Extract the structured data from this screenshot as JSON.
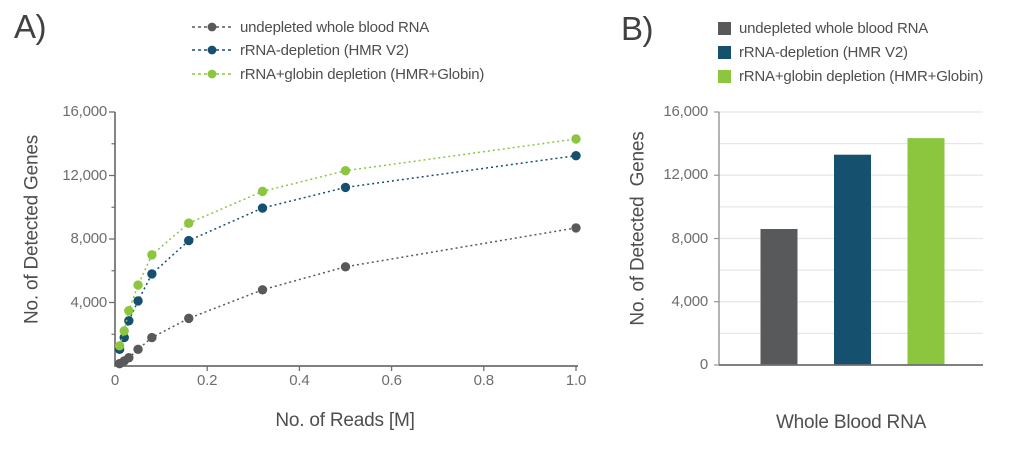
{
  "theme": {
    "background": "#ffffff",
    "axis_color": "#6d6e71",
    "secondary_axis_color": "#939598",
    "grid_color": "#e6e7e8",
    "tick_label_color": "#6d6e71",
    "axis_title_color": "#4d4e50",
    "panel_label_color": "#414042"
  },
  "chart_data": [
    {
      "type": "line",
      "panel": "A)",
      "title": "",
      "xlabel": "No. of Reads [M]",
      "ylabel": "No. of Detected Genes",
      "xlim": [
        0,
        1.0
      ],
      "ylim": [
        0,
        16000
      ],
      "xtick_labels": [
        "0",
        "0.2",
        "0.4",
        "0.6",
        "0.8",
        "1.0"
      ],
      "ytick_values": [
        16000,
        12000,
        8000,
        4000
      ],
      "ytick_labels": [
        "16,000",
        "12,000",
        "8,000",
        "4,000"
      ],
      "ytick_minor_values": [
        14000,
        10000,
        6000,
        2000
      ],
      "line_style": "dotted",
      "marker": "circle",
      "grid": false,
      "legend_position": "top",
      "x": [
        0.01,
        0.02,
        0.03,
        0.05,
        0.08,
        0.16,
        0.32,
        0.5,
        1.0
      ],
      "series": [
        {
          "name": "undepleted whole blood RNA",
          "color": "#58595b",
          "values": [
            150,
            320,
            520,
            1050,
            1790,
            3000,
            4800,
            6250,
            8700
          ]
        },
        {
          "name": "rRNA-depletion (HMR V2)",
          "color": "#15506f",
          "values": [
            1050,
            1790,
            2850,
            4100,
            5800,
            7900,
            9950,
            11250,
            13250
          ]
        },
        {
          "name": "rRNA+globin depletion (HMR+Globin)",
          "color": "#8cc63f",
          "values": [
            1270,
            2210,
            3480,
            5100,
            7000,
            9000,
            11000,
            12300,
            14300
          ]
        }
      ]
    },
    {
      "type": "bar",
      "panel": "B)",
      "title": "",
      "xlabel": "Whole Blood RNA",
      "ylabel": "No. of Detected  Genes",
      "ylim": [
        0,
        16000
      ],
      "ytick_values": [
        16000,
        12000,
        8000,
        4000,
        0
      ],
      "ytick_labels": [
        "16,000",
        "12,000",
        "8,000",
        "4,000",
        "0"
      ],
      "gridline_interval": 2000,
      "grid": true,
      "legend_position": "top",
      "categories": [
        "undepleted whole blood RNA",
        "rRNA-depletion (HMR V2)",
        "rRNA+globin depletion (HMR+Globin)"
      ],
      "values": [
        8600,
        13300,
        14350
      ],
      "colors": [
        "#58595b",
        "#15506f",
        "#8cc63f"
      ]
    }
  ]
}
